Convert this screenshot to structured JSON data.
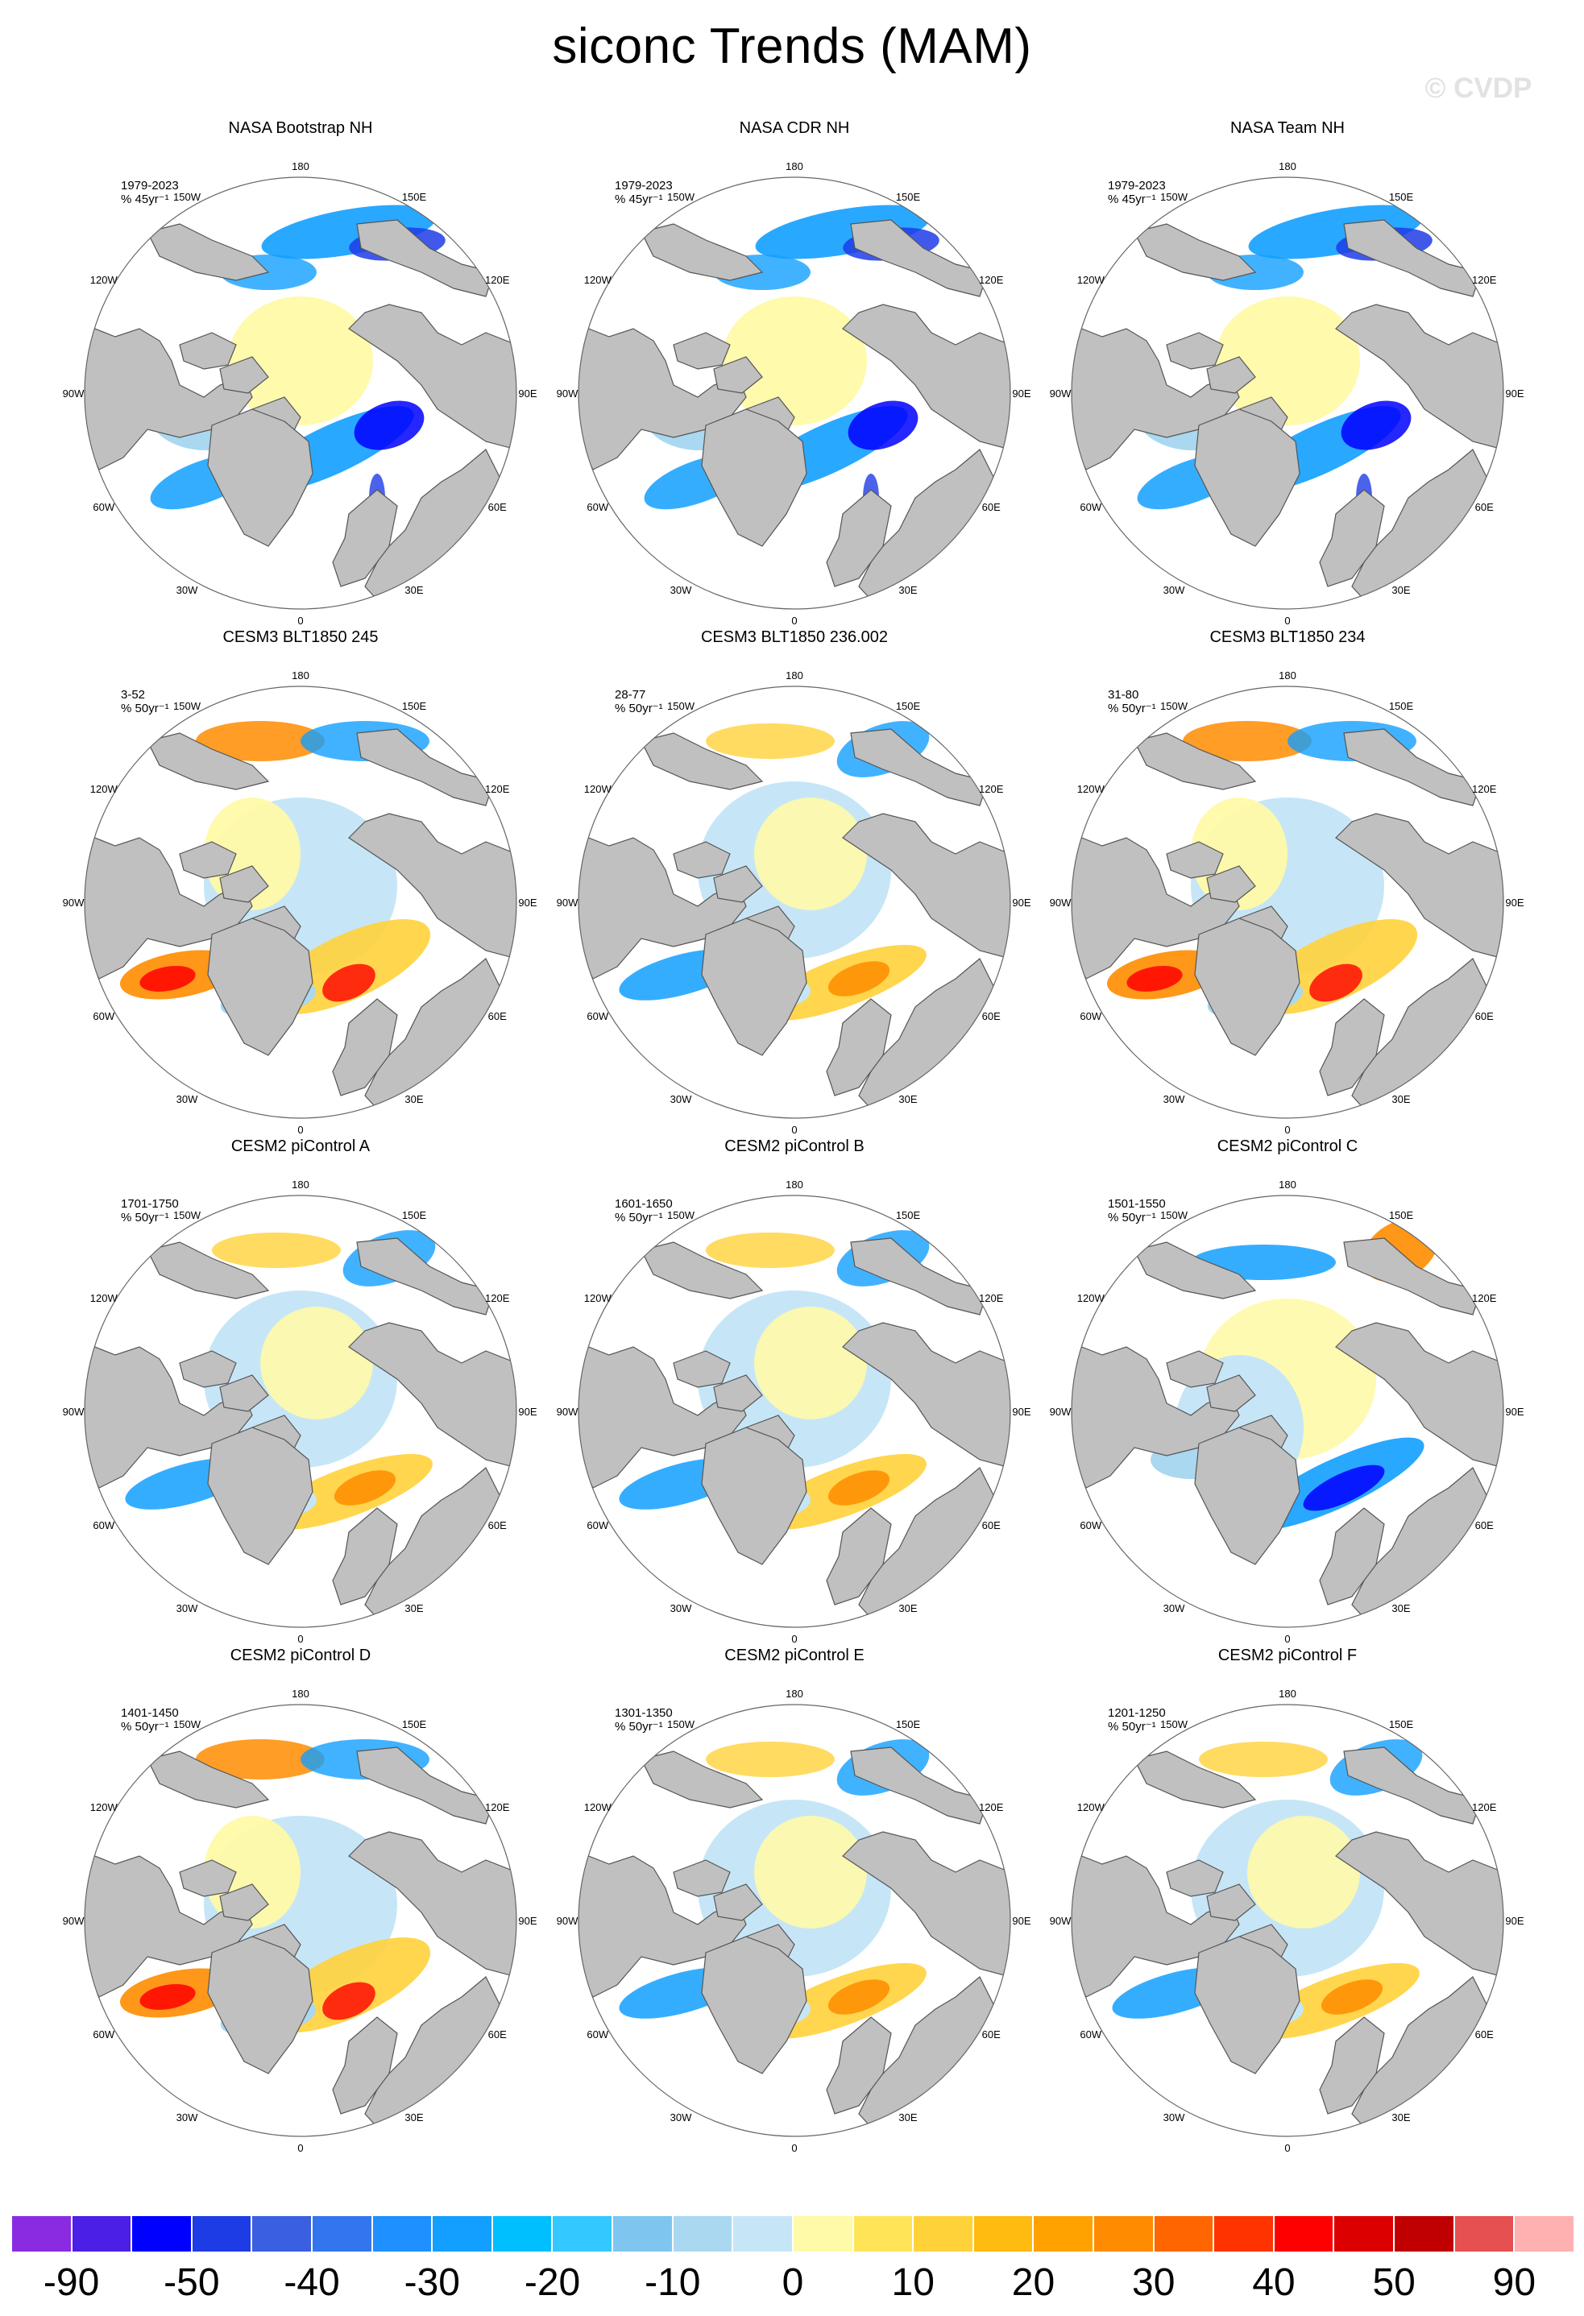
{
  "title": "siconc Trends (MAM)",
  "watermark": "© CVDP",
  "colors": {
    "land": "#c0c0c0",
    "coast": "#555555",
    "ocean": "#ffffff",
    "circle": "#666666"
  },
  "lon_labels": [
    "180",
    "150E",
    "120E",
    "90E",
    "60E",
    "30E",
    "0",
    "30W",
    "60W",
    "90W",
    "120W",
    "150W"
  ],
  "panels": [
    {
      "title": "NASA Bootstrap NH",
      "period": "1979-2023",
      "units": "% 45yr⁻¹",
      "pattern": "obs"
    },
    {
      "title": "NASA CDR NH",
      "period": "1979-2023",
      "units": "% 45yr⁻¹",
      "pattern": "obs"
    },
    {
      "title": "NASA Team NH",
      "period": "1979-2023",
      "units": "% 45yr⁻¹",
      "pattern": "obs"
    },
    {
      "title": "CESM3 BLT1850 245",
      "period": "3-52",
      "units": "% 50yr⁻¹",
      "pattern": "model_pos"
    },
    {
      "title": "CESM3 BLT1850 236.002",
      "period": "28-77",
      "units": "% 50yr⁻¹",
      "pattern": "model_mix"
    },
    {
      "title": "CESM3 BLT1850 234",
      "period": "31-80",
      "units": "% 50yr⁻¹",
      "pattern": "model_pos"
    },
    {
      "title": "CESM2 piControl A",
      "period": "1701-1750",
      "units": "% 50yr⁻¹",
      "pattern": "model_mix"
    },
    {
      "title": "CESM2 piControl B",
      "period": "1601-1650",
      "units": "% 50yr⁻¹",
      "pattern": "model_mix"
    },
    {
      "title": "CESM2 piControl C",
      "period": "1501-1550",
      "units": "% 50yr⁻¹",
      "pattern": "model_neg"
    },
    {
      "title": "CESM2 piControl D",
      "period": "1401-1450",
      "units": "% 50yr⁻¹",
      "pattern": "model_pos"
    },
    {
      "title": "CESM2 piControl E",
      "period": "1301-1350",
      "units": "% 50yr⁻¹",
      "pattern": "model_mix"
    },
    {
      "title": "CESM2 piControl F",
      "period": "1201-1250",
      "units": "% 50yr⁻¹",
      "pattern": "model_mix"
    }
  ],
  "colorbar": {
    "colors": [
      "#8a2be2",
      "#4b1fe6",
      "#0000ff",
      "#1e3ce6",
      "#3a5fe0",
      "#3375ee",
      "#1e90ff",
      "#129fff",
      "#00bfff",
      "#33c8ff",
      "#7ec6f0",
      "#a9d8f0",
      "#c6e6f8",
      "#fffaa8",
      "#ffe458",
      "#ffd23a",
      "#ffbb10",
      "#ffa200",
      "#ff8c00",
      "#ff6600",
      "#ff3300",
      "#ff0000",
      "#dd0000",
      "#c00000",
      "#e65050",
      "#ffb0b0"
    ],
    "labels": [
      "-90",
      "-50",
      "-40",
      "-30",
      "-20",
      "-10",
      "0",
      "10",
      "20",
      "30",
      "40",
      "50",
      "90"
    ]
  }
}
